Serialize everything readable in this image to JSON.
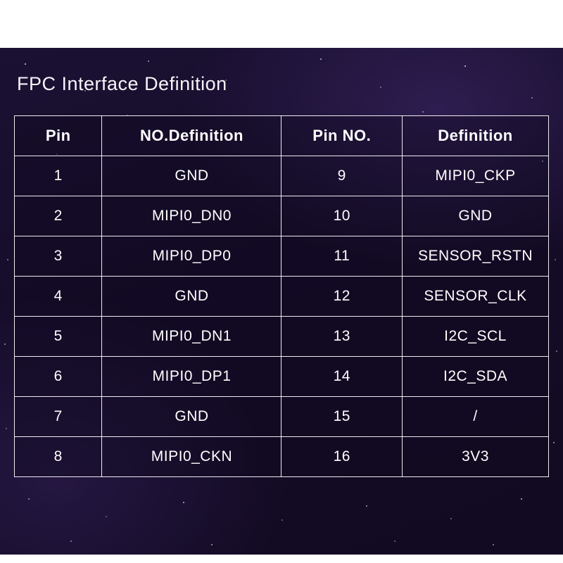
{
  "page": {
    "title": "FPC Interface Definition"
  },
  "colors": {
    "panel_background": "#150c28",
    "table_border": "#ffffff",
    "text": "#ffffff",
    "page_background": "#ffffff"
  },
  "table": {
    "headers": [
      "Pin",
      "NO.Definition",
      "Pin NO.",
      "Definition"
    ],
    "rows": [
      [
        "1",
        "GND",
        "9",
        "MIPI0_CKP"
      ],
      [
        "2",
        "MIPI0_DN0",
        "10",
        "GND"
      ],
      [
        "3",
        "MIPI0_DP0",
        "11",
        "SENSOR_RSTN"
      ],
      [
        "4",
        "GND",
        "12",
        "SENSOR_CLK"
      ],
      [
        "5",
        "MIPI0_DN1",
        "13",
        "I2C_SCL"
      ],
      [
        "6",
        "MIPI0_DP1",
        "14",
        "I2C_SDA"
      ],
      [
        "7",
        "GND",
        "15",
        "/"
      ],
      [
        "8",
        "MIPI0_CKN",
        "16",
        "3V3"
      ]
    ]
  }
}
